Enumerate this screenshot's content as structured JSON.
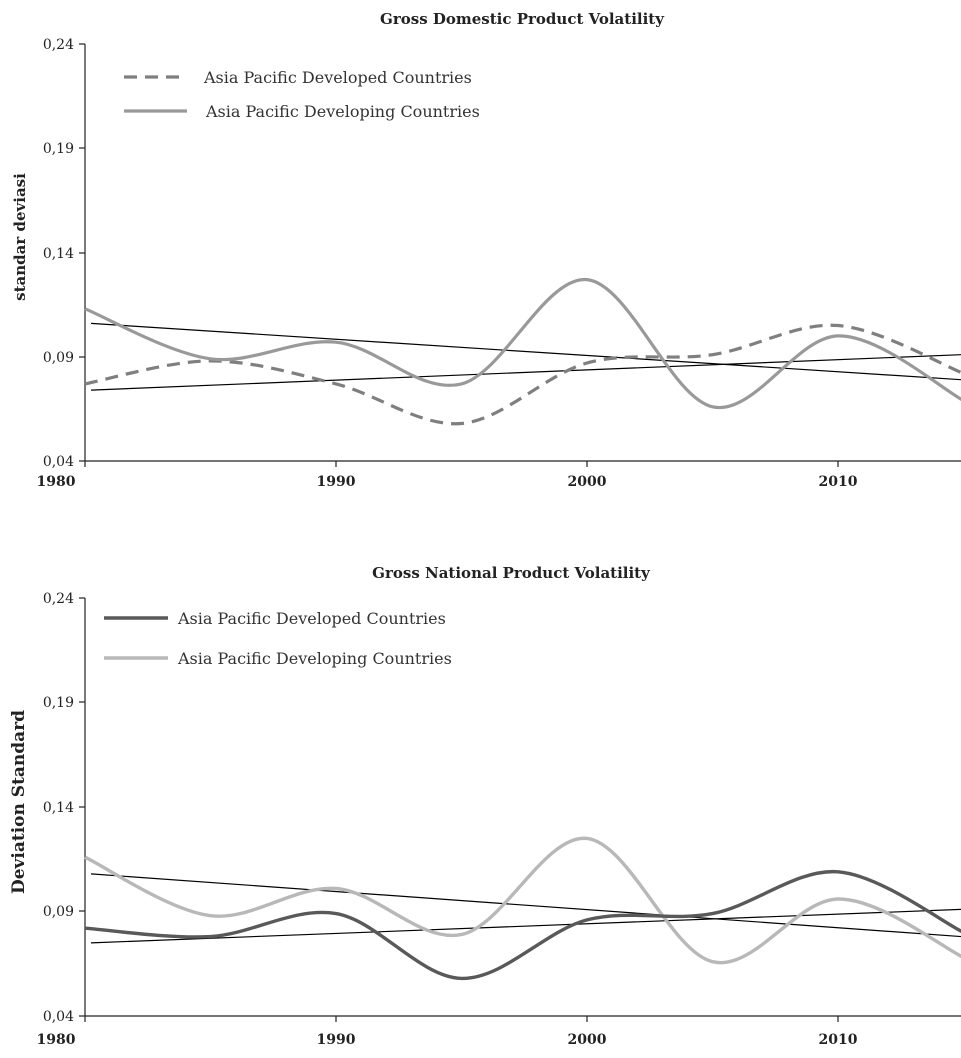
{
  "colors": {
    "gdp_developed": "#7f7f7f",
    "gdp_developing": "#999999",
    "gnp_developed": "#595959",
    "gnp_developing": "#b8b8b8",
    "trend": "#000000"
  },
  "chart_data": [
    {
      "type": "line",
      "title": "Gross Domestic Product Volatility",
      "ylabel": "standar deviasi",
      "xlabel": "",
      "xlim": [
        1980,
        2015
      ],
      "ylim": [
        0.04,
        0.24
      ],
      "x_ticks": [
        "1980",
        "1990",
        "2000",
        "2010"
      ],
      "y_ticks": [
        "0,04",
        "0,09",
        "0,14",
        "0,19",
        "0,24"
      ],
      "legend": "top-left",
      "grid": false,
      "series": [
        {
          "name": "Asia Pacific Developed Countries",
          "style": "dashed",
          "x": [
            1980,
            1985,
            1990,
            1995,
            2000,
            2005,
            2010,
            2015
          ],
          "y": [
            0.077,
            0.088,
            0.077,
            0.058,
            0.087,
            0.091,
            0.105,
            0.082
          ]
        },
        {
          "name": "Asia Pacific Developing Countries",
          "style": "solid",
          "x": [
            1980,
            1985,
            1990,
            1995,
            2000,
            2005,
            2010,
            2015
          ],
          "y": [
            0.113,
            0.089,
            0.097,
            0.077,
            0.127,
            0.066,
            0.1,
            0.069
          ]
        }
      ],
      "trendlines": [
        {
          "x": [
            1980,
            2015
          ],
          "y": [
            0.106,
            0.079
          ]
        },
        {
          "x": [
            1980,
            2015
          ],
          "y": [
            0.074,
            0.091
          ]
        }
      ]
    },
    {
      "type": "line",
      "title": "Gross National Product Volatility",
      "ylabel": "Deviation Standard",
      "xlabel": "",
      "xlim": [
        1980,
        2015
      ],
      "ylim": [
        0.04,
        0.24
      ],
      "x_ticks": [
        "1980",
        "1990",
        "2000",
        "2010"
      ],
      "y_ticks": [
        "0,04",
        "0,09",
        "0,14",
        "0,19",
        "0,24"
      ],
      "legend": "top-left",
      "grid": false,
      "series": [
        {
          "name": "Asia Pacific Developed Countries",
          "style": "solid",
          "x": [
            1980,
            1985,
            1990,
            1995,
            2000,
            2005,
            2010,
            2015
          ],
          "y": [
            0.082,
            0.078,
            0.089,
            0.058,
            0.086,
            0.089,
            0.109,
            0.08
          ]
        },
        {
          "name": "Asia Pacific Developing Countries",
          "style": "solid",
          "x": [
            1980,
            1985,
            1990,
            1995,
            2000,
            2005,
            2010,
            2015
          ],
          "y": [
            0.116,
            0.088,
            0.101,
            0.079,
            0.125,
            0.066,
            0.096,
            0.068
          ]
        }
      ],
      "trendlines": [
        {
          "x": [
            1980,
            2015
          ],
          "y": [
            0.108,
            0.078
          ]
        },
        {
          "x": [
            1980,
            2015
          ],
          "y": [
            0.075,
            0.091
          ]
        }
      ]
    }
  ]
}
